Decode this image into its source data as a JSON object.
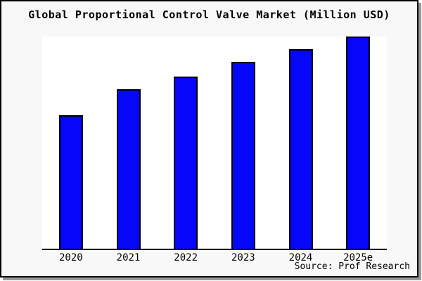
{
  "title": "Global Proportional Control Valve Market (Million USD)",
  "source": "Source: Prof Research",
  "colors": {
    "page_background": "#f8f8f8",
    "plot_background": "#ffffff",
    "frame_border": "#000000",
    "frame_shadow": "#999999",
    "bar_fill": "#0606f9",
    "bar_border": "#000000",
    "axis_line": "#000000",
    "text": "#000000"
  },
  "chart_data": {
    "type": "bar",
    "title": "Global Proportional Control Valve Market (Million USD)",
    "categories": [
      "2020",
      "2021",
      "2022",
      "2023",
      "2024",
      "2025e"
    ],
    "values": [
      63,
      75,
      81,
      88,
      94,
      100
    ],
    "values_note": "relative bar heights as % of tallest bar; chart shows no numeric y-axis, gridlines or data labels",
    "xlabel": "",
    "ylabel": "",
    "legend": "none",
    "grid": false,
    "bar_color": "#0606f9",
    "bar_border_color": "#000000"
  }
}
